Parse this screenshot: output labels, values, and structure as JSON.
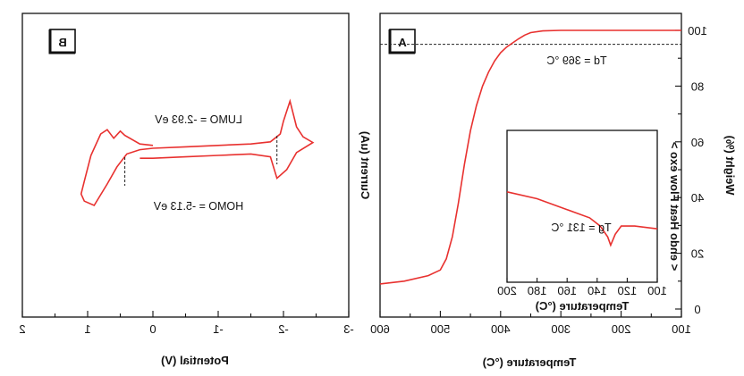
{
  "chart_data": [
    {
      "panel": "B",
      "type": "line",
      "xlabel": "Potential (V)",
      "ylabel": "Current (uA)",
      "xlim": [
        -3,
        2
      ],
      "x_direction": "reversed",
      "xticks": [
        "2",
        "1",
        "0",
        "-1",
        "-2",
        "-3"
      ],
      "annotations": [
        "LUMO = -2.93 eV",
        "HOMO = -5.13 eV"
      ],
      "onset_markers_V": [
        0.43,
        -1.9
      ],
      "series": [
        {
          "values_x": [
            0.0,
            0.2,
            0.43,
            0.5,
            0.6,
            0.7,
            0.8,
            0.95,
            1.05,
            1.1,
            1.05,
            0.9,
            0.7,
            0.55,
            0.4,
            0.2,
            0.0,
            -0.5,
            -1.0,
            -1.5,
            -1.8,
            -1.95,
            -2.0,
            -2.1,
            -2.2,
            -2.3,
            -2.45,
            -2.2,
            -2.05,
            -1.9,
            -1.8,
            -1.5,
            -1.0,
            -0.5,
            0.0,
            0.2
          ],
          "values_y": [
            1.7,
            1.8,
            2.4,
            2.7,
            2.2,
            2.8,
            2.5,
            1.0,
            -0.8,
            -1.7,
            -2.2,
            -2.5,
            -1.0,
            0.2,
            1.1,
            1.4,
            1.5,
            1.6,
            1.7,
            1.8,
            1.95,
            2.5,
            3.4,
            4.8,
            3.0,
            2.3,
            1.9,
            1.2,
            0.0,
            -0.6,
            0.9,
            1.1,
            1.0,
            0.9,
            0.8,
            0.8
          ]
        }
      ]
    },
    {
      "panel": "A",
      "type": "line",
      "xlabel": "Temperature (°C)",
      "ylabel": "Weight (%)",
      "xlim": [
        100,
        600
      ],
      "ylim": [
        0,
        100
      ],
      "x_direction": "reversed",
      "xticks": [
        "600",
        "500",
        "400",
        "300",
        "200",
        "100"
      ],
      "yticks": [
        "0",
        "20",
        "40",
        "60",
        "80",
        "100"
      ],
      "annotations": [
        "Td = 369 °C"
      ],
      "reference_line_y": 95,
      "series": [
        {
          "values_x": [
            600,
            560,
            520,
            500,
            490,
            480,
            470,
            460,
            450,
            440,
            430,
            420,
            410,
            400,
            390,
            380,
            370,
            360,
            350,
            330,
            300,
            250,
            200,
            150,
            100
          ],
          "values_y": [
            9,
            10,
            12,
            14,
            18,
            26,
            38,
            52,
            64,
            73,
            80,
            85,
            89,
            92,
            94,
            95.5,
            97,
            98.3,
            99.2,
            99.8,
            100,
            100,
            100,
            100,
            100
          ]
        }
      ],
      "inset": {
        "type": "line",
        "xlabel": "Temperature (°C)",
        "ylabel": "< endo  Heat Flow  exo >",
        "xlim": [
          100,
          200
        ],
        "x_direction": "reversed",
        "xticks": [
          "200",
          "180",
          "160",
          "140",
          "120",
          "100"
        ],
        "annotations": [
          "Tg = 131 °C"
        ],
        "series": [
          {
            "values_x": [
              200,
              180,
              160,
              145,
              138,
              133,
              131,
              128,
              124,
              115,
              100
            ],
            "values_y": [
              0.55,
              0.5,
              0.42,
              0.36,
              0.3,
              0.22,
              0.16,
              0.24,
              0.3,
              0.3,
              0.28
            ]
          }
        ]
      }
    }
  ]
}
